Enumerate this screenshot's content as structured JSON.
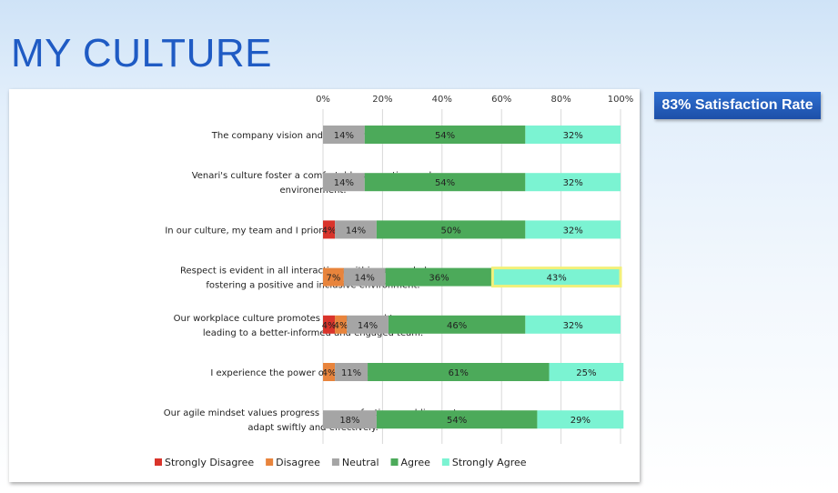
{
  "page": {
    "title": "MY CULTURE",
    "badge": "83% Satisfaction Rate"
  },
  "chart_data": {
    "type": "bar",
    "orientation": "horizontal",
    "stacked": true,
    "percent_stacked": true,
    "xlim": [
      0,
      100
    ],
    "x_ticks": [
      "0%",
      "20%",
      "40%",
      "60%",
      "80%",
      "100%"
    ],
    "grid": true,
    "legend_position": "bottom",
    "categories": [
      [
        "The company vision and mision inspires me."
      ],
      [
        "Venari's culture foster a comfortable supportive work",
        "environement."
      ],
      [
        "In our culture, my team and I prioritize meeting customer needs."
      ],
      [
        "Respect is evident in all interactions within our workplace,",
        "fostering a positive and inclusive environment."
      ],
      [
        "Our workplace culture promotes openness and transparency,",
        "leading to a better-informed and engaged team."
      ],
      [
        "I experience the power of collaboration daily."
      ],
      [
        "Our agile mindset values progress over perfection, enabling us to",
        "adapt swiftly and effectively."
      ]
    ],
    "series": [
      {
        "name": "Strongly Disagree",
        "color": "#d9342b",
        "values": [
          0,
          0,
          4,
          0,
          4,
          0,
          0
        ]
      },
      {
        "name": "Disagree",
        "color": "#e8843c",
        "values": [
          0,
          0,
          0,
          7,
          4,
          4,
          0
        ]
      },
      {
        "name": "Neutral",
        "color": "#a5a5a5",
        "values": [
          14,
          14,
          14,
          14,
          14,
          11,
          18
        ]
      },
      {
        "name": "Agree",
        "color": "#4caa5a",
        "values": [
          54,
          54,
          50,
          36,
          46,
          61,
          54
        ]
      },
      {
        "name": "Strongly Agree",
        "color": "#7bf3d2",
        "values": [
          32,
          32,
          32,
          43,
          32,
          25,
          29
        ]
      }
    ],
    "highlight": {
      "category_index": 3,
      "series": "Strongly Agree",
      "color": "#f2f07a"
    }
  }
}
